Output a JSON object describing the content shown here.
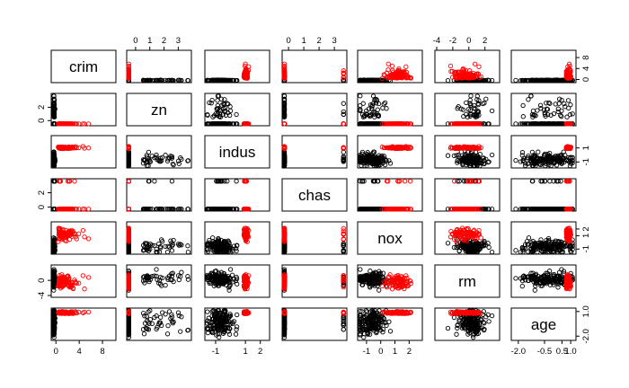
{
  "chart_data": {
    "type": "scatter",
    "subtype": "scatterplot-matrix",
    "variables": [
      "crim",
      "zn",
      "indus",
      "chas",
      "nox",
      "rm",
      "age"
    ],
    "groups": [
      {
        "color": "#000000"
      },
      {
        "color": "#ff0000"
      }
    ],
    "ranges": {
      "crim": [
        -0.5,
        10
      ],
      "zn": [
        -0.5,
        3.8
      ],
      "indus": [
        -1.6,
        2.5
      ],
      "chas": [
        -0.3,
        3.7
      ],
      "nox": [
        -1.5,
        2.8
      ],
      "rm": [
        -4,
        3.6
      ],
      "age": [
        -2.3,
        1.2
      ]
    },
    "axis_ticks": {
      "top": [
        {
          "var": "zn",
          "ticks": [
            "0",
            "1",
            "2",
            "3"
          ],
          "values": [
            0,
            1,
            2,
            3
          ]
        },
        {
          "var": "chas",
          "ticks": [
            "0",
            "1",
            "2",
            "3"
          ],
          "values": [
            0,
            1,
            2,
            3
          ]
        },
        {
          "var": "rm",
          "ticks": [
            "-4",
            "-2",
            "0",
            "2"
          ],
          "values": [
            -4,
            -2,
            0,
            2
          ]
        }
      ],
      "bottom": [
        {
          "var": "crim",
          "ticks": [
            "0",
            "4",
            "8"
          ],
          "values": [
            0,
            4,
            8
          ]
        },
        {
          "var": "indus",
          "ticks": [
            "-1",
            "1",
            "2"
          ],
          "values": [
            -1,
            1,
            2
          ]
        },
        {
          "var": "nox",
          "ticks": [
            "-1",
            "0",
            "1",
            "2"
          ],
          "values": [
            -1,
            0,
            1,
            2
          ]
        },
        {
          "var": "age",
          "ticks": [
            "-2.0",
            "-0.5",
            "0.5",
            "1.0"
          ],
          "values": [
            -2.0,
            -0.5,
            0.5,
            1.0
          ]
        }
      ],
      "left": [
        {
          "var": "zn",
          "ticks": [
            "0",
            "2"
          ],
          "values": [
            0,
            2
          ]
        },
        {
          "var": "chas",
          "ticks": [
            "0",
            "2"
          ],
          "values": [
            0,
            2
          ]
        },
        {
          "var": "rm",
          "ticks": [
            "-4",
            "0"
          ],
          "values": [
            -4,
            0
          ]
        }
      ],
      "right": [
        {
          "var": "crim",
          "ticks": [
            "0",
            "4",
            "8"
          ],
          "values": [
            0,
            4,
            8
          ]
        },
        {
          "var": "indus",
          "ticks": [
            "-1",
            "1"
          ],
          "values": [
            -1,
            1
          ]
        },
        {
          "var": "nox",
          "ticks": [
            "-1",
            "1",
            "2"
          ],
          "values": [
            -1,
            1,
            2
          ]
        },
        {
          "var": "age",
          "ticks": [
            "-2.0",
            "1.0"
          ],
          "values": [
            -2.0,
            1.0
          ]
        }
      ]
    },
    "grid": false
  }
}
